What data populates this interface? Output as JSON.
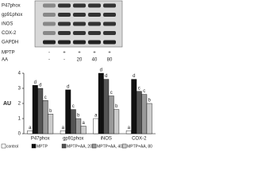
{
  "blot": {
    "rows": [
      "P47phox",
      "gp91phox",
      "iNOS",
      "COX-2",
      "GAPDH"
    ],
    "treatments": [
      {
        "label": "MPTP",
        "lanes": [
          "-",
          "+",
          "+",
          "+",
          "+"
        ]
      },
      {
        "label": "AA",
        "lanes": [
          "-",
          "-",
          "20",
          "40",
          "80"
        ]
      }
    ]
  },
  "chart_data": {
    "type": "bar",
    "y_label": "AU",
    "categories": [
      "P47phox",
      "gp91phox",
      "iNOS",
      "COX-2"
    ],
    "series": [
      {
        "name": "control",
        "color": "#ffffff",
        "values": [
          0.2,
          0.2,
          1.0,
          0.2
        ],
        "letters": [
          "a",
          "a",
          "a",
          "a"
        ]
      },
      {
        "name": "MPTP",
        "color": "#111111",
        "values": [
          3.2,
          2.9,
          4.0,
          3.6
        ],
        "letters": [
          "d",
          "d",
          "d",
          "d"
        ]
      },
      {
        "name": "MPTP+AA, 20",
        "color": "#555555",
        "values": [
          3.0,
          1.6,
          3.6,
          2.8
        ],
        "letters": [
          "d",
          "c",
          "d",
          "c"
        ]
      },
      {
        "name": "MPTP+AA, 40",
        "color": "#999999",
        "values": [
          2.2,
          1.0,
          2.5,
          2.6
        ],
        "letters": [
          "c",
          "b",
          "c",
          "c"
        ]
      },
      {
        "name": "MPTP+AA, 80",
        "color": "#cccccc",
        "values": [
          1.3,
          0.5,
          1.6,
          2.0
        ],
        "letters": [
          "b",
          "a",
          "b",
          "b"
        ]
      }
    ],
    "ylim": [
      0,
      4
    ],
    "yticks": [
      0,
      1,
      2,
      3,
      4
    ]
  }
}
